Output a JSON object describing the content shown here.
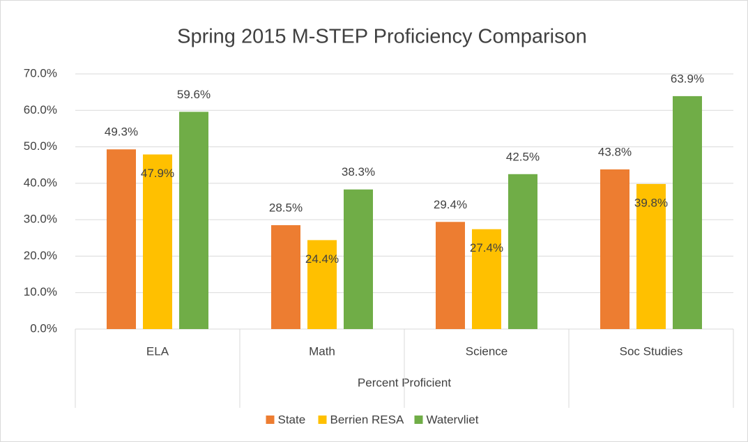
{
  "chart_data": {
    "type": "bar",
    "title": "Spring 2015 M-STEP Proficiency Comparison",
    "x_label": "Percent Proficient",
    "categories": [
      "ELA",
      "Math",
      "Science",
      "Soc Studies"
    ],
    "series": [
      {
        "name": "State",
        "color": "#ed7d31",
        "values": [
          49.3,
          28.5,
          29.4,
          43.8
        ],
        "value_labels": [
          "49.3%",
          "28.5%",
          "29.4%",
          "43.8%"
        ]
      },
      {
        "name": "Berrien RESA",
        "color": "#ffc000",
        "values": [
          47.9,
          24.4,
          27.4,
          39.8
        ],
        "value_labels": [
          "47.9%",
          "24.4%",
          "27.4%",
          "39.8%"
        ]
      },
      {
        "name": "Watervliet",
        "color": "#70ad47",
        "values": [
          59.6,
          38.3,
          42.5,
          63.9
        ],
        "value_labels": [
          "59.6%",
          "38.3%",
          "42.5%",
          "63.9%"
        ]
      }
    ],
    "ylim": [
      0,
      70
    ],
    "yticks": [
      {
        "value": 0,
        "label": "0.0%"
      },
      {
        "value": 10,
        "label": "10.0%"
      },
      {
        "value": 20,
        "label": "20.0%"
      },
      {
        "value": 30,
        "label": "30.0%"
      },
      {
        "value": 40,
        "label": "40.0%"
      },
      {
        "value": 50,
        "label": "50.0%"
      },
      {
        "value": 60,
        "label": "60.0%"
      },
      {
        "value": 70,
        "label": "70.0%"
      }
    ],
    "grid": true,
    "legend": "bottom"
  }
}
